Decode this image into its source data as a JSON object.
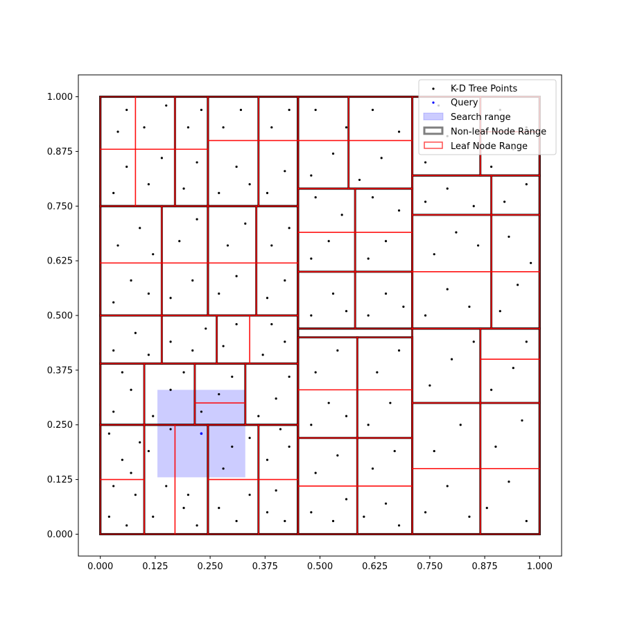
{
  "chart_data": {
    "type": "scatter",
    "title": "",
    "xlabel": "",
    "ylabel": "",
    "xlim": [
      -0.05,
      1.05
    ],
    "ylim": [
      -0.05,
      1.05
    ],
    "x_ticks": [
      {
        "value": 0.0,
        "label": "0.000"
      },
      {
        "value": 0.125,
        "label": "0.125"
      },
      {
        "value": 0.25,
        "label": "0.250"
      },
      {
        "value": 0.375,
        "label": "0.375"
      },
      {
        "value": 0.5,
        "label": "0.500"
      },
      {
        "value": 0.625,
        "label": "0.625"
      },
      {
        "value": 0.75,
        "label": "0.750"
      },
      {
        "value": 0.875,
        "label": "0.875"
      },
      {
        "value": 1.0,
        "label": "1.000"
      }
    ],
    "y_ticks": [
      {
        "value": 0.0,
        "label": "0.000"
      },
      {
        "value": 0.125,
        "label": "0.125"
      },
      {
        "value": 0.25,
        "label": "0.250"
      },
      {
        "value": 0.375,
        "label": "0.375"
      },
      {
        "value": 0.5,
        "label": "0.500"
      },
      {
        "value": 0.625,
        "label": "0.625"
      },
      {
        "value": 0.75,
        "label": "0.750"
      },
      {
        "value": 0.875,
        "label": "0.875"
      },
      {
        "value": 1.0,
        "label": "1.000"
      }
    ],
    "grid": false,
    "legend_position": "top-right",
    "legend": [
      {
        "label": "K-D Tree Points",
        "kind": "point",
        "color": "#000000"
      },
      {
        "label": "Query",
        "kind": "point",
        "color": "#0000ff"
      },
      {
        "label": "Search range",
        "kind": "patch",
        "color": "#0000ff"
      },
      {
        "label": "Non-leaf Node Range",
        "kind": "box",
        "color": "#000000"
      },
      {
        "label": "Leaf Node Range",
        "kind": "box",
        "color": "#ff0000"
      }
    ],
    "search_range": {
      "x": [
        0.13,
        0.33
      ],
      "y": [
        0.13,
        0.33
      ],
      "color": "#0000ff"
    },
    "query_point": {
      "x": 0.23,
      "y": 0.23,
      "color": "#0000ff"
    },
    "points_color": "#000000",
    "nonleaf_color": "#000000",
    "leaf_color": "#ff0000",
    "nonleaf_ranges": [
      [
        0,
        0.45,
        0,
        1
      ],
      [
        0.45,
        1,
        0,
        1
      ],
      [
        0,
        0.45,
        0,
        0.5
      ],
      [
        0,
        0.45,
        0.5,
        1
      ],
      [
        0.45,
        1,
        0,
        0.47
      ],
      [
        0.45,
        1,
        0.47,
        1
      ],
      [
        0,
        0.245,
        0,
        0.25
      ],
      [
        0.245,
        0.45,
        0,
        0.25
      ],
      [
        0,
        0.45,
        0.25,
        0.39
      ],
      [
        0,
        0.45,
        0.39,
        0.5
      ],
      [
        0,
        0.245,
        0.5,
        0.75
      ],
      [
        0.245,
        0.45,
        0.5,
        0.75
      ],
      [
        0,
        0.245,
        0.75,
        1
      ],
      [
        0.245,
        0.45,
        0.75,
        1
      ],
      [
        0.45,
        0.71,
        0,
        0.45
      ],
      [
        0.71,
        1,
        0,
        0.47
      ],
      [
        0.45,
        0.71,
        0.47,
        0.79
      ],
      [
        0.71,
        1,
        0.47,
        0.82
      ],
      [
        0.45,
        0.71,
        0.79,
        1
      ],
      [
        0.71,
        1,
        0.82,
        1
      ],
      [
        0,
        0.1,
        0,
        0.25
      ],
      [
        0.1,
        0.245,
        0,
        0.25
      ],
      [
        0.245,
        0.36,
        0,
        0.25
      ],
      [
        0.36,
        0.45,
        0,
        0.25
      ],
      [
        0,
        0.1,
        0.25,
        0.39
      ],
      [
        0.1,
        0.215,
        0.25,
        0.39
      ],
      [
        0.215,
        0.33,
        0.25,
        0.39
      ],
      [
        0.33,
        0.45,
        0.25,
        0.39
      ],
      [
        0,
        0.14,
        0.39,
        0.5
      ],
      [
        0.14,
        0.265,
        0.39,
        0.5
      ],
      [
        0.265,
        0.45,
        0.39,
        0.5
      ],
      [
        0,
        0.14,
        0.5,
        0.75
      ],
      [
        0.14,
        0.245,
        0.5,
        0.75
      ],
      [
        0.245,
        0.355,
        0.5,
        0.75
      ],
      [
        0.355,
        0.45,
        0.5,
        0.75
      ],
      [
        0,
        0.17,
        0.75,
        1
      ],
      [
        0.17,
        0.245,
        0.75,
        1
      ],
      [
        0.245,
        0.36,
        0.75,
        1
      ],
      [
        0.36,
        0.45,
        0.75,
        1
      ],
      [
        0.45,
        0.585,
        0,
        0.22
      ],
      [
        0.585,
        0.71,
        0,
        0.22
      ],
      [
        0.45,
        0.585,
        0.22,
        0.45
      ],
      [
        0.585,
        0.71,
        0.22,
        0.45
      ],
      [
        0.71,
        0.865,
        0,
        0.3
      ],
      [
        0.865,
        1,
        0,
        0.3
      ],
      [
        0.71,
        0.865,
        0.3,
        0.47
      ],
      [
        0.865,
        1,
        0.3,
        0.47
      ],
      [
        0.45,
        0.58,
        0.47,
        0.6
      ],
      [
        0.58,
        0.71,
        0.47,
        0.6
      ],
      [
        0.45,
        0.58,
        0.6,
        0.79
      ],
      [
        0.58,
        0.71,
        0.6,
        0.79
      ],
      [
        0.71,
        0.89,
        0.47,
        0.73
      ],
      [
        0.89,
        1,
        0.47,
        0.73
      ],
      [
        0.71,
        0.89,
        0.73,
        0.82
      ],
      [
        0.89,
        1,
        0.73,
        0.82
      ],
      [
        0.45,
        0.565,
        0.79,
        1
      ],
      [
        0.565,
        0.71,
        0.79,
        1
      ],
      [
        0.71,
        0.865,
        0.82,
        1
      ],
      [
        0.865,
        1,
        0.82,
        1
      ]
    ],
    "leaf_ranges": [
      [
        0,
        0.1,
        0,
        0.125
      ],
      [
        0,
        0.1,
        0.125,
        0.25
      ],
      [
        0.1,
        0.17,
        0,
        0.25
      ],
      [
        0.17,
        0.245,
        0,
        0.25
      ],
      [
        0.245,
        0.36,
        0,
        0.125
      ],
      [
        0.245,
        0.36,
        0.125,
        0.25
      ],
      [
        0.36,
        0.45,
        0,
        0.125
      ],
      [
        0.36,
        0.45,
        0.125,
        0.25
      ],
      [
        0,
        0.1,
        0.25,
        0.39
      ],
      [
        0.1,
        0.215,
        0.25,
        0.39
      ],
      [
        0.215,
        0.33,
        0.25,
        0.3
      ],
      [
        0.215,
        0.33,
        0.3,
        0.39
      ],
      [
        0.33,
        0.45,
        0.25,
        0.39
      ],
      [
        0,
        0.14,
        0.39,
        0.5
      ],
      [
        0.14,
        0.265,
        0.39,
        0.5
      ],
      [
        0.265,
        0.34,
        0.39,
        0.5
      ],
      [
        0.34,
        0.45,
        0.39,
        0.5
      ],
      [
        0,
        0.14,
        0.5,
        0.62
      ],
      [
        0,
        0.14,
        0.62,
        0.75
      ],
      [
        0.14,
        0.245,
        0.5,
        0.62
      ],
      [
        0.14,
        0.245,
        0.62,
        0.75
      ],
      [
        0.245,
        0.355,
        0.5,
        0.62
      ],
      [
        0.245,
        0.355,
        0.62,
        0.75
      ],
      [
        0.355,
        0.45,
        0.5,
        0.62
      ],
      [
        0.355,
        0.45,
        0.62,
        0.75
      ],
      [
        0,
        0.08,
        0.75,
        0.88
      ],
      [
        0,
        0.08,
        0.88,
        1
      ],
      [
        0.08,
        0.17,
        0.75,
        0.88
      ],
      [
        0.08,
        0.17,
        0.88,
        1
      ],
      [
        0.17,
        0.245,
        0.75,
        0.88
      ],
      [
        0.17,
        0.245,
        0.88,
        1
      ],
      [
        0.245,
        0.36,
        0.75,
        0.9
      ],
      [
        0.245,
        0.36,
        0.9,
        1
      ],
      [
        0.36,
        0.45,
        0.75,
        0.9
      ],
      [
        0.36,
        0.45,
        0.9,
        1
      ],
      [
        0.45,
        0.585,
        0,
        0.11
      ],
      [
        0.45,
        0.585,
        0.11,
        0.22
      ],
      [
        0.585,
        0.71,
        0,
        0.11
      ],
      [
        0.585,
        0.71,
        0.11,
        0.22
      ],
      [
        0.45,
        0.585,
        0.22,
        0.33
      ],
      [
        0.45,
        0.585,
        0.33,
        0.45
      ],
      [
        0.585,
        0.71,
        0.22,
        0.33
      ],
      [
        0.585,
        0.71,
        0.33,
        0.45
      ],
      [
        0.71,
        0.865,
        0,
        0.15
      ],
      [
        0.71,
        0.865,
        0.15,
        0.3
      ],
      [
        0.865,
        1,
        0,
        0.15
      ],
      [
        0.865,
        1,
        0.15,
        0.3
      ],
      [
        0.71,
        0.865,
        0.3,
        0.47
      ],
      [
        0.865,
        1,
        0.3,
        0.4
      ],
      [
        0.865,
        1,
        0.4,
        0.47
      ],
      [
        0.45,
        0.58,
        0.47,
        0.6
      ],
      [
        0.58,
        0.71,
        0.47,
        0.6
      ],
      [
        0.45,
        0.58,
        0.6,
        0.69
      ],
      [
        0.45,
        0.58,
        0.69,
        0.79
      ],
      [
        0.58,
        0.71,
        0.6,
        0.69
      ],
      [
        0.58,
        0.71,
        0.69,
        0.79
      ],
      [
        0.71,
        0.89,
        0.47,
        0.6
      ],
      [
        0.71,
        0.89,
        0.6,
        0.73
      ],
      [
        0.89,
        1,
        0.47,
        0.6
      ],
      [
        0.89,
        1,
        0.6,
        0.73
      ],
      [
        0.71,
        0.89,
        0.73,
        0.82
      ],
      [
        0.89,
        1,
        0.73,
        0.82
      ],
      [
        0.45,
        0.565,
        0.79,
        0.9
      ],
      [
        0.45,
        0.565,
        0.9,
        1
      ],
      [
        0.565,
        0.71,
        0.79,
        0.9
      ],
      [
        0.565,
        0.71,
        0.9,
        1
      ],
      [
        0.71,
        0.865,
        0.82,
        1
      ],
      [
        0.865,
        1,
        0.82,
        0.92
      ],
      [
        0.865,
        1,
        0.92,
        1
      ]
    ],
    "points": [
      [
        0.02,
        0.04
      ],
      [
        0.06,
        0.02
      ],
      [
        0.08,
        0.09
      ],
      [
        0.03,
        0.11
      ],
      [
        0.05,
        0.17
      ],
      [
        0.09,
        0.21
      ],
      [
        0.02,
        0.23
      ],
      [
        0.07,
        0.14
      ],
      [
        0.12,
        0.04
      ],
      [
        0.15,
        0.11
      ],
      [
        0.19,
        0.06
      ],
      [
        0.22,
        0.02
      ],
      [
        0.2,
        0.09
      ],
      [
        0.11,
        0.19
      ],
      [
        0.16,
        0.24
      ],
      [
        0.23,
        0.23
      ],
      [
        0.27,
        0.06
      ],
      [
        0.31,
        0.03
      ],
      [
        0.34,
        0.09
      ],
      [
        0.28,
        0.15
      ],
      [
        0.3,
        0.2
      ],
      [
        0.34,
        0.22
      ],
      [
        0.38,
        0.05
      ],
      [
        0.42,
        0.03
      ],
      [
        0.4,
        0.1
      ],
      [
        0.38,
        0.17
      ],
      [
        0.43,
        0.2
      ],
      [
        0.41,
        0.24
      ],
      [
        0.03,
        0.28
      ],
      [
        0.07,
        0.33
      ],
      [
        0.05,
        0.37
      ],
      [
        0.12,
        0.27
      ],
      [
        0.16,
        0.33
      ],
      [
        0.19,
        0.37
      ],
      [
        0.23,
        0.28
      ],
      [
        0.27,
        0.32
      ],
      [
        0.3,
        0.36
      ],
      [
        0.36,
        0.27
      ],
      [
        0.4,
        0.31
      ],
      [
        0.43,
        0.36
      ],
      [
        0.03,
        0.42
      ],
      [
        0.08,
        0.46
      ],
      [
        0.11,
        0.41
      ],
      [
        0.16,
        0.44
      ],
      [
        0.21,
        0.42
      ],
      [
        0.24,
        0.47
      ],
      [
        0.28,
        0.43
      ],
      [
        0.31,
        0.48
      ],
      [
        0.37,
        0.41
      ],
      [
        0.42,
        0.44
      ],
      [
        0.39,
        0.48
      ],
      [
        0.03,
        0.53
      ],
      [
        0.07,
        0.58
      ],
      [
        0.11,
        0.55
      ],
      [
        0.04,
        0.66
      ],
      [
        0.09,
        0.7
      ],
      [
        0.12,
        0.64
      ],
      [
        0.16,
        0.54
      ],
      [
        0.21,
        0.58
      ],
      [
        0.18,
        0.67
      ],
      [
        0.22,
        0.72
      ],
      [
        0.27,
        0.55
      ],
      [
        0.31,
        0.59
      ],
      [
        0.29,
        0.66
      ],
      [
        0.33,
        0.71
      ],
      [
        0.38,
        0.54
      ],
      [
        0.42,
        0.58
      ],
      [
        0.39,
        0.66
      ],
      [
        0.43,
        0.7
      ],
      [
        0.03,
        0.78
      ],
      [
        0.06,
        0.84
      ],
      [
        0.04,
        0.92
      ],
      [
        0.06,
        0.97
      ],
      [
        0.11,
        0.8
      ],
      [
        0.14,
        0.86
      ],
      [
        0.1,
        0.93
      ],
      [
        0.15,
        0.98
      ],
      [
        0.19,
        0.79
      ],
      [
        0.22,
        0.85
      ],
      [
        0.2,
        0.93
      ],
      [
        0.23,
        0.97
      ],
      [
        0.27,
        0.78
      ],
      [
        0.31,
        0.84
      ],
      [
        0.34,
        0.8
      ],
      [
        0.28,
        0.93
      ],
      [
        0.32,
        0.97
      ],
      [
        0.38,
        0.78
      ],
      [
        0.42,
        0.83
      ],
      [
        0.39,
        0.93
      ],
      [
        0.43,
        0.97
      ],
      [
        0.48,
        0.05
      ],
      [
        0.53,
        0.03
      ],
      [
        0.56,
        0.08
      ],
      [
        0.49,
        0.14
      ],
      [
        0.54,
        0.18
      ],
      [
        0.6,
        0.04
      ],
      [
        0.65,
        0.07
      ],
      [
        0.68,
        0.02
      ],
      [
        0.62,
        0.15
      ],
      [
        0.67,
        0.19
      ],
      [
        0.48,
        0.25
      ],
      [
        0.52,
        0.3
      ],
      [
        0.56,
        0.27
      ],
      [
        0.49,
        0.37
      ],
      [
        0.54,
        0.42
      ],
      [
        0.61,
        0.25
      ],
      [
        0.66,
        0.3
      ],
      [
        0.63,
        0.37
      ],
      [
        0.68,
        0.42
      ],
      [
        0.74,
        0.05
      ],
      [
        0.79,
        0.11
      ],
      [
        0.84,
        0.04
      ],
      [
        0.76,
        0.19
      ],
      [
        0.82,
        0.25
      ],
      [
        0.88,
        0.06
      ],
      [
        0.93,
        0.12
      ],
      [
        0.97,
        0.03
      ],
      [
        0.9,
        0.2
      ],
      [
        0.96,
        0.26
      ],
      [
        0.75,
        0.34
      ],
      [
        0.8,
        0.4
      ],
      [
        0.85,
        0.44
      ],
      [
        0.89,
        0.33
      ],
      [
        0.94,
        0.38
      ],
      [
        0.97,
        0.44
      ],
      [
        0.48,
        0.5
      ],
      [
        0.53,
        0.55
      ],
      [
        0.56,
        0.51
      ],
      [
        0.61,
        0.5
      ],
      [
        0.65,
        0.55
      ],
      [
        0.69,
        0.52
      ],
      [
        0.48,
        0.63
      ],
      [
        0.52,
        0.67
      ],
      [
        0.55,
        0.73
      ],
      [
        0.49,
        0.77
      ],
      [
        0.61,
        0.63
      ],
      [
        0.65,
        0.67
      ],
      [
        0.68,
        0.74
      ],
      [
        0.62,
        0.77
      ],
      [
        0.74,
        0.5
      ],
      [
        0.79,
        0.56
      ],
      [
        0.84,
        0.52
      ],
      [
        0.76,
        0.64
      ],
      [
        0.81,
        0.69
      ],
      [
        0.86,
        0.66
      ],
      [
        0.91,
        0.51
      ],
      [
        0.95,
        0.57
      ],
      [
        0.98,
        0.62
      ],
      [
        0.93,
        0.68
      ],
      [
        0.74,
        0.76
      ],
      [
        0.79,
        0.79
      ],
      [
        0.85,
        0.75
      ],
      [
        0.92,
        0.76
      ],
      [
        0.97,
        0.8
      ],
      [
        0.48,
        0.82
      ],
      [
        0.53,
        0.87
      ],
      [
        0.56,
        0.93
      ],
      [
        0.49,
        0.97
      ],
      [
        0.59,
        0.81
      ],
      [
        0.64,
        0.86
      ],
      [
        0.68,
        0.92
      ],
      [
        0.62,
        0.97
      ],
      [
        0.74,
        0.85
      ],
      [
        0.79,
        0.91
      ],
      [
        0.84,
        0.95
      ],
      [
        0.77,
        0.98
      ],
      [
        0.89,
        0.84
      ],
      [
        0.94,
        0.88
      ],
      [
        0.97,
        0.93
      ],
      [
        0.91,
        0.97
      ]
    ]
  }
}
